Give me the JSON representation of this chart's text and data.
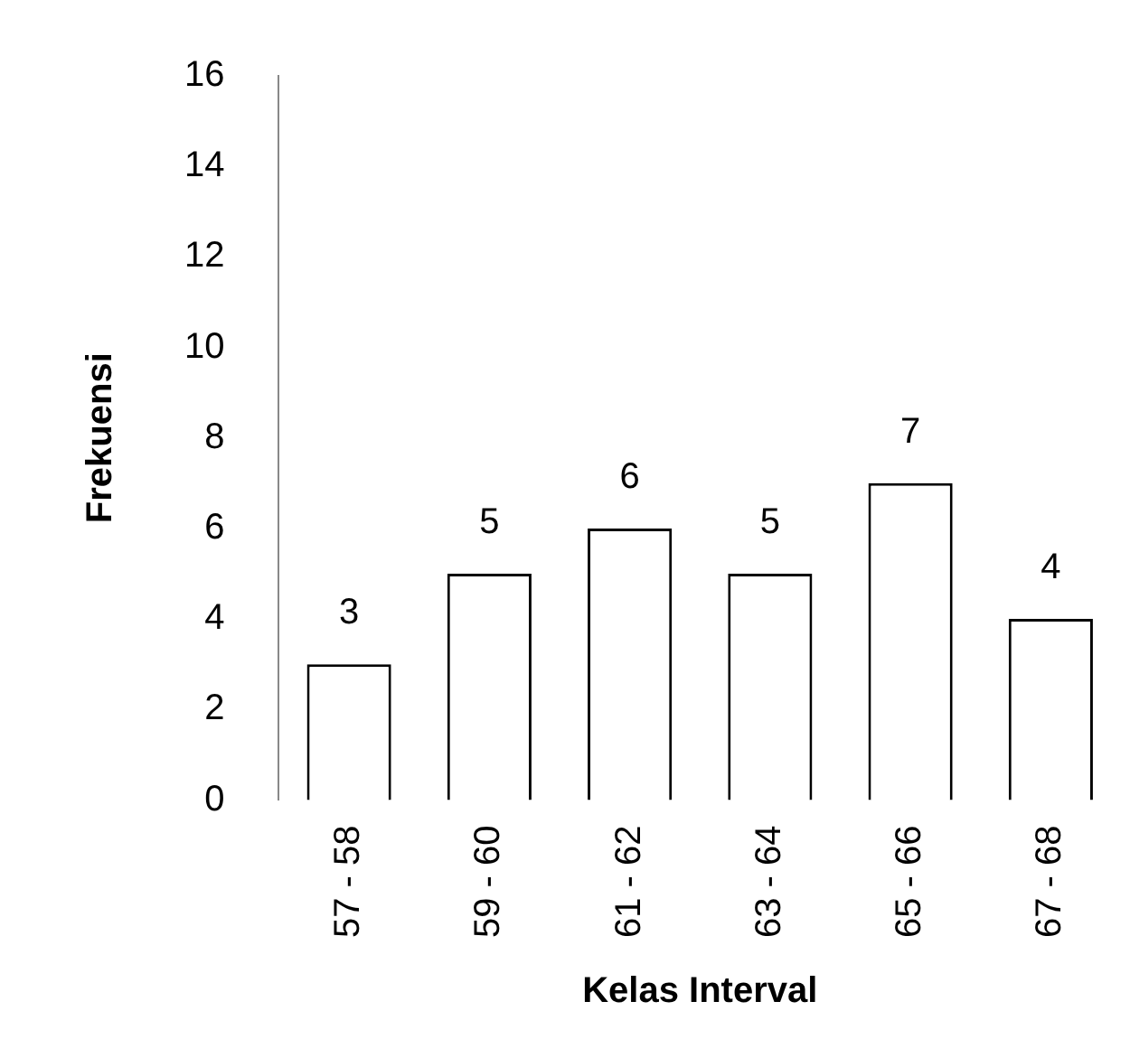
{
  "chart_data": {
    "type": "bar",
    "xlabel": "Kelas Interval",
    "ylabel": "Frekuensi",
    "categories": [
      "57 - 58",
      "59 - 60",
      "61 - 62",
      "63 - 64",
      "65 - 66",
      "67 - 68"
    ],
    "values": [
      3,
      5,
      6,
      5,
      7,
      4
    ],
    "color": "#ffffff",
    "ylim": [
      0,
      16
    ],
    "yticks": [
      0,
      2,
      4,
      6,
      8,
      10,
      12,
      14,
      16
    ],
    "grid": false,
    "legend": false,
    "data_labels": true
  }
}
